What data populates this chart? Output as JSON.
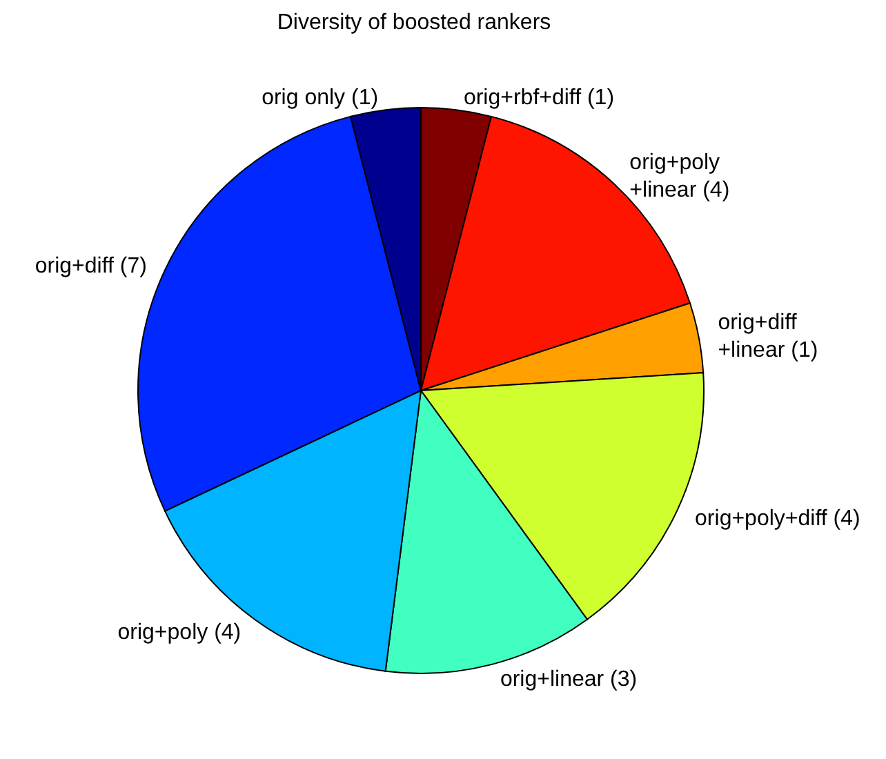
{
  "chart_data": {
    "type": "pie",
    "title": "Diversity of boosted rankers",
    "categories": [
      "orig+rbf+diff (1)",
      "orig+poly\n+linear (4)",
      "orig+diff\n+linear (1)",
      "orig+poly+diff (4)",
      "orig+linear (3)",
      "orig+poly (4)",
      "orig+diff (7)",
      "orig only (1)"
    ],
    "values": [
      1,
      4,
      1,
      4,
      3,
      4,
      7,
      1
    ],
    "colors": [
      "#800000",
      "#ff1400",
      "#ffa000",
      "#d0ff30",
      "#40ffc0",
      "#00b4ff",
      "#0028ff",
      "#00008f"
    ],
    "legend": false
  }
}
